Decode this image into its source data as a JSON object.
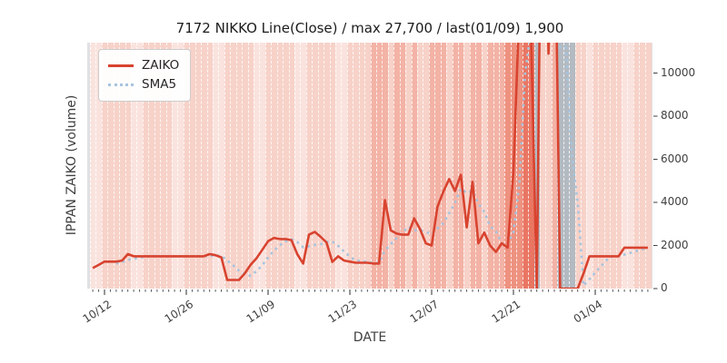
{
  "title": "7172 NIKKO Line(Close) / max 27,700 / last(01/09) 1,900",
  "legend": {
    "items": [
      {
        "label": "ZAIKO",
        "style": "solid",
        "color": "#d8432f"
      },
      {
        "label": "SMA5",
        "style": "dotted",
        "color": "#a6c4de"
      }
    ]
  },
  "axes": {
    "x_label": "DATE",
    "y_label": "IPPAN ZAIKO (volume)",
    "y_ticks": [
      0,
      2000,
      4000,
      6000,
      8000,
      10000
    ],
    "y_visible_max": 11410,
    "x_ticks": [
      {
        "label": "10/12",
        "day": 4
      },
      {
        "label": "10/26",
        "day": 18
      },
      {
        "label": "11/09",
        "day": 32
      },
      {
        "label": "11/23",
        "day": 46
      },
      {
        "label": "12/07",
        "day": 60
      },
      {
        "label": "12/21",
        "day": 74
      },
      {
        "label": "01/04",
        "day": 88
      }
    ],
    "day_range": [
      2,
      97
    ]
  },
  "chart_data": {
    "type": "line",
    "title": "7172 NIKKO Line(Close) / max 27,700 / last(01/09) 1,900",
    "xlabel": "DATE",
    "ylabel": "IPPAN ZAIKO (volume)",
    "x_unit": "day index, day 4 = 10/12, one unit = one calendar day",
    "ylim": [
      0,
      11410
    ],
    "annotations": {
      "max_value": 27700,
      "last_date": "01/09",
      "last_value": 1900
    },
    "series": [
      {
        "name": "ZAIKO",
        "color": "#d8432f",
        "line_style": "solid",
        "day_start": 2,
        "values": [
          950,
          1100,
          1250,
          1250,
          1250,
          1300,
          1600,
          1500,
          1500,
          1500,
          1500,
          1500,
          1500,
          1500,
          1500,
          1500,
          1500,
          1500,
          1500,
          1500,
          1600,
          1550,
          1450,
          400,
          400,
          400,
          700,
          1100,
          1400,
          1800,
          2200,
          2350,
          2300,
          2300,
          2250,
          1600,
          1160,
          2500,
          2630,
          2400,
          2140,
          1240,
          1500,
          1300,
          1250,
          1200,
          1200,
          1200,
          1160,
          1160,
          4100,
          2700,
          2550,
          2500,
          2500,
          3260,
          2770,
          2100,
          2000,
          3800,
          4500,
          5080,
          4530,
          5280,
          2840,
          4950,
          2100,
          2600,
          2000,
          1700,
          2100,
          1900,
          5400,
          13000,
          27700,
          12000,
          0,
          25000,
          10900,
          20000,
          0,
          0,
          0,
          0,
          700,
          1500,
          1500,
          1500,
          1500,
          1500,
          1500,
          1900,
          1900,
          1900,
          1900,
          1900
        ]
      },
      {
        "name": "SMA5",
        "color": "#a6c4de",
        "line_style": "dotted",
        "derived": "trailing 5-day moving average of ZAIKO"
      }
    ],
    "background_bands": {
      "description": "one vertical shaded band per day, white dashed separators",
      "palette": [
        "#fae3de",
        "#f7d2c9",
        "#f3b3a6",
        "#ee9280",
        "#e97663",
        "#b3bac1"
      ],
      "day_start": 2,
      "levels": [
        0,
        0,
        1,
        1,
        1,
        1,
        1,
        0,
        0,
        1,
        1,
        1,
        1,
        1,
        0,
        0,
        1,
        1,
        1,
        1,
        1,
        0,
        0,
        1,
        1,
        1,
        1,
        1,
        0,
        0,
        1,
        1,
        1,
        1,
        1,
        0,
        0,
        1,
        1,
        1,
        1,
        1,
        0,
        0,
        1,
        1,
        1,
        1,
        2,
        2,
        2,
        1,
        2,
        2,
        1,
        2,
        1,
        1,
        2,
        2,
        2,
        1,
        2,
        2,
        1,
        2,
        2,
        1,
        2,
        2,
        2,
        3,
        3,
        3,
        4,
        4,
        5,
        1,
        1,
        2,
        5,
        5,
        5,
        1,
        1,
        0,
        1,
        1,
        1,
        1,
        1,
        0,
        0,
        1,
        1,
        1
      ]
    }
  }
}
